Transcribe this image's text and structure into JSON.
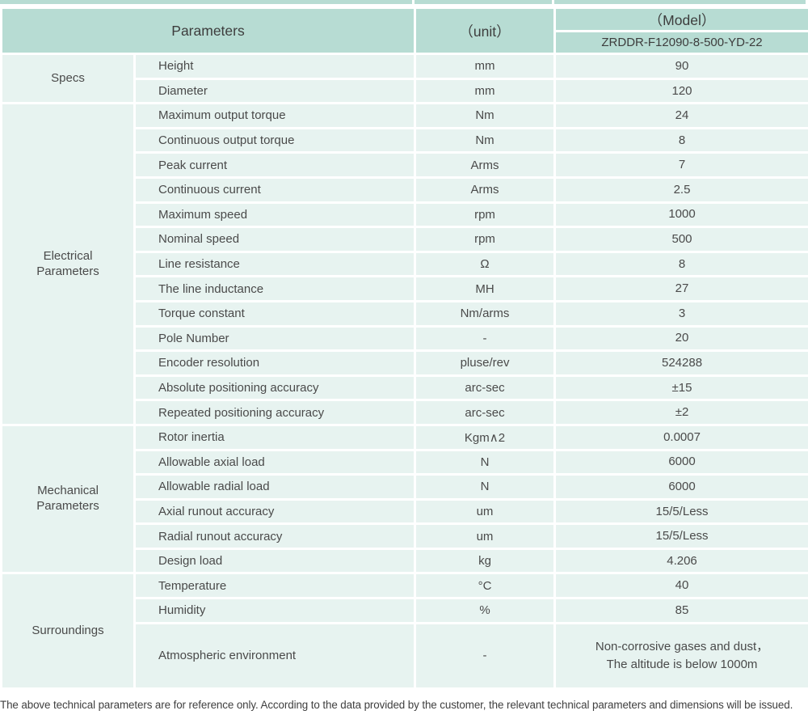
{
  "table": {
    "header": {
      "parameters": "Parameters",
      "unit": "（unit）",
      "model": "（Model）",
      "model_number": "ZRDDR-F12090-8-500-YD-22"
    },
    "groups": [
      {
        "category": "Specs",
        "rows": [
          {
            "param": "Height",
            "unit": "mm",
            "value": "90"
          },
          {
            "param": "Diameter",
            "unit": "mm",
            "value": "120"
          }
        ]
      },
      {
        "category": "Electrical Parameters",
        "rows": [
          {
            "param": "Maximum output torque",
            "unit": "Nm",
            "value": "24"
          },
          {
            "param": "Continuous output torque",
            "unit": "Nm",
            "value": "8"
          },
          {
            "param": "Peak current",
            "unit": "Arms",
            "value": "7"
          },
          {
            "param": "Continuous current",
            "unit": "Arms",
            "value": "2.5"
          },
          {
            "param": "Maximum speed",
            "unit": "rpm",
            "value": "1000"
          },
          {
            "param": "Nominal speed",
            "unit": "rpm",
            "value": "500"
          },
          {
            "param": "Line resistance",
            "unit": "Ω",
            "value": "8"
          },
          {
            "param": "The line inductance",
            "unit": "MH",
            "value": "27"
          },
          {
            "param": "Torque constant",
            "unit": "Nm/arms",
            "value": "3"
          },
          {
            "param": "Pole Number",
            "unit": "-",
            "value": "20"
          },
          {
            "param": "Encoder resolution",
            "unit": "pluse/rev",
            "value": "524288"
          },
          {
            "param": "Absolute positioning accuracy",
            "unit": "arc-sec",
            "value": "±15"
          },
          {
            "param": "Repeated positioning accuracy",
            "unit": "arc-sec",
            "value": "±2"
          }
        ]
      },
      {
        "category": "Mechanical Parameters",
        "rows": [
          {
            "param": "Rotor inertia",
            "unit": "Kgm∧2",
            "value": "0.0007"
          },
          {
            "param": "Allowable axial load",
            "unit": "N",
            "value": "6000"
          },
          {
            "param": "Allowable radial load",
            "unit": "N",
            "value": "6000"
          },
          {
            "param": "Axial runout accuracy",
            "unit": "um",
            "value": "15/5/Less"
          },
          {
            "param": "Radial runout accuracy",
            "unit": "um",
            "value": "15/5/Less"
          },
          {
            "param": "Design load",
            "unit": "kg",
            "value": "4.206"
          }
        ]
      },
      {
        "category": "Surroundings",
        "rows": [
          {
            "param": "Temperature",
            "unit": "°C",
            "value": "40"
          },
          {
            "param": "Humidity",
            "unit": "%",
            "value": "85"
          },
          {
            "param": "Atmospheric environment",
            "unit": "-",
            "value": "Non-corrosive gases and dust，\nThe altitude is below 1000m",
            "tall": true
          }
        ]
      }
    ]
  },
  "footer_note": "The above technical parameters are for reference only. According to the data provided by the customer, the relevant technical parameters and dimensions will be issued.",
  "colors": {
    "header_bg": "#b7dcd3",
    "row_bg": "#e7f3f0",
    "border_white": "#ffffff",
    "header_text": "#3d3d3d",
    "body_text": "#4a4a4a"
  }
}
